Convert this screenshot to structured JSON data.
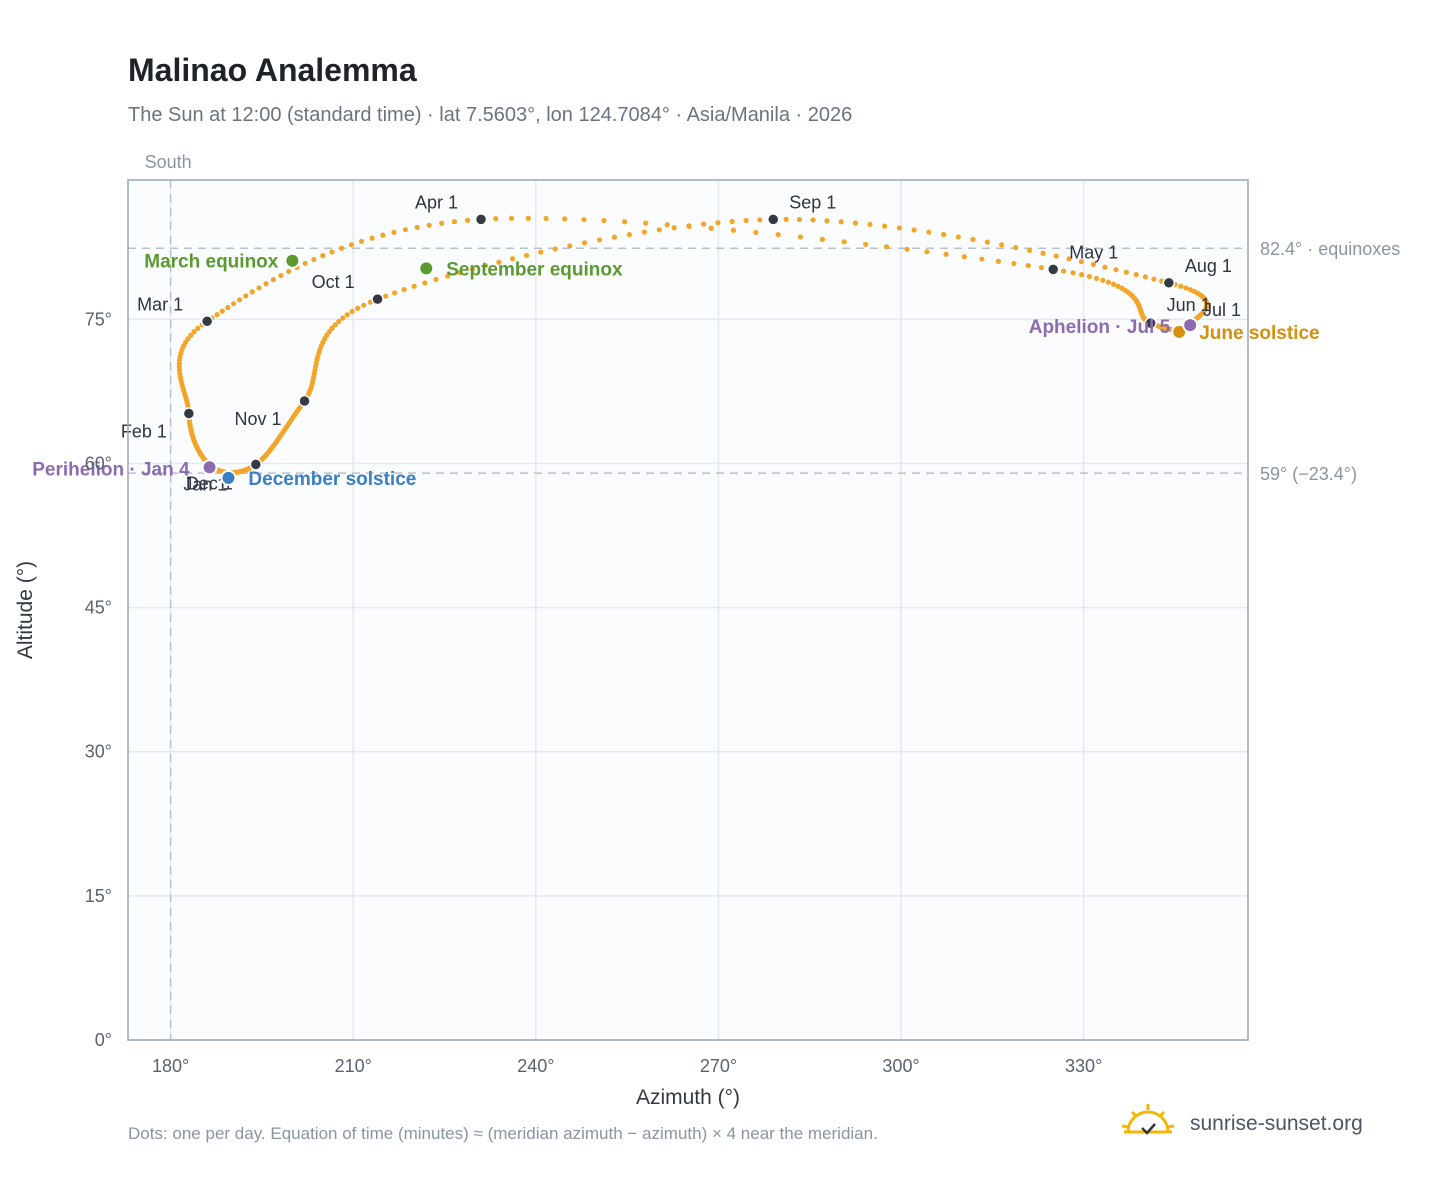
{
  "header": {
    "title": "Malinao Analemma",
    "subtitle": "The Sun at 12:00 (standard time) · lat 7.5603°, lon 124.7084° · Asia/Manila · 2026"
  },
  "footnote": "Dots: one per day. Equation of time (minutes) ≈ (meridian azimuth − azimuth) × 4 near the meridian.",
  "brand": {
    "name": "sunrise-sunset.org",
    "icon": "sun-icon",
    "color": "#f2b705"
  },
  "colors": {
    "path": "#f2a526",
    "month_marker": "#333a46",
    "equinox": "#5a9a2f",
    "june_solstice": "#d4900e",
    "december_solstice": "#3a7ec4",
    "perihelion_aphelion": "#8c6bb1",
    "plot_bg": "#fafcfe",
    "grid": "#e4e9f0",
    "ref_line": "#b8c2cc"
  },
  "chart_data": {
    "type": "scatter",
    "xlabel": "Azimuth (°)",
    "ylabel": "Altitude (°)",
    "xlim": [
      173,
      357
    ],
    "ylim": [
      0,
      89.5
    ],
    "x_ticks": [
      {
        "value": 180,
        "label": "180°"
      },
      {
        "value": 210,
        "label": "210°"
      },
      {
        "value": 240,
        "label": "240°"
      },
      {
        "value": 270,
        "label": "270°"
      },
      {
        "value": 300,
        "label": "300°"
      },
      {
        "value": 330,
        "label": "330°"
      }
    ],
    "y_ticks": [
      {
        "value": 0,
        "label": "0°"
      },
      {
        "value": 15,
        "label": "15°"
      },
      {
        "value": 30,
        "label": "30°"
      },
      {
        "value": 45,
        "label": "45°"
      },
      {
        "value": 60,
        "label": "60°"
      },
      {
        "value": 75,
        "label": "75°"
      }
    ],
    "grid": true,
    "reference_lines": [
      {
        "axis": "x",
        "value": 180,
        "label": "South"
      },
      {
        "axis": "y",
        "value": 82.4,
        "label": "82.4° · equinoxes"
      },
      {
        "axis": "y",
        "value": 59,
        "label": "59° (−23.4°)"
      }
    ],
    "month_points": [
      {
        "label": "Jan 1",
        "az": 186.7,
        "alt": 59.7
      },
      {
        "label": "Feb 1",
        "az": 183.0,
        "alt": 65.2
      },
      {
        "label": "Mar 1",
        "az": 186.0,
        "alt": 74.8
      },
      {
        "label": "Apr 1",
        "az": 231.0,
        "alt": 85.4
      },
      {
        "label": "May 1",
        "az": 325.0,
        "alt": 80.2
      },
      {
        "label": "Jun 1",
        "az": 341.0,
        "alt": 74.6
      },
      {
        "label": "Jul 1",
        "az": 347.3,
        "alt": 74.4
      },
      {
        "label": "Aug 1",
        "az": 344.0,
        "alt": 78.8
      },
      {
        "label": "Sep 1",
        "az": 279.0,
        "alt": 85.4
      },
      {
        "label": "Oct 1",
        "az": 214.0,
        "alt": 77.1
      },
      {
        "label": "Nov 1",
        "az": 202.0,
        "alt": 66.5
      },
      {
        "label": "Dec 1",
        "az": 194.0,
        "alt": 59.9
      }
    ],
    "events": [
      {
        "label": "March equinox",
        "az": 200.0,
        "alt": 81.1,
        "kind": "equinox"
      },
      {
        "label": "September equinox",
        "az": 222.0,
        "alt": 80.3,
        "kind": "equinox"
      },
      {
        "label": "June solstice",
        "az": 345.7,
        "alt": 73.7,
        "kind": "june_solstice"
      },
      {
        "label": "December solstice",
        "az": 189.5,
        "alt": 58.5,
        "kind": "december_solstice"
      },
      {
        "label": "Perihelion · Jan 4",
        "az": 186.4,
        "alt": 59.6,
        "kind": "perihelion_aphelion"
      },
      {
        "label": "Aphelion · Jul 5",
        "az": 347.5,
        "alt": 74.4,
        "kind": "perihelion_aphelion"
      }
    ]
  }
}
